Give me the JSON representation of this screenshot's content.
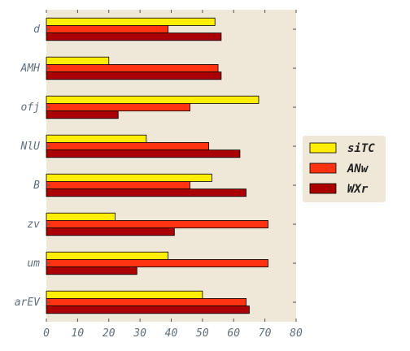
{
  "chart_data": {
    "type": "bar",
    "orientation": "horizontal",
    "categories": [
      "d",
      "AMH",
      "ofj",
      "NlU",
      "B",
      "zv",
      "um",
      "arEV"
    ],
    "series": [
      {
        "name": "siTC",
        "color": "#ffee00",
        "values": [
          54,
          20,
          68,
          32,
          53,
          22,
          39,
          50
        ]
      },
      {
        "name": "ANw",
        "color": "#ff3311",
        "values": [
          39,
          55,
          46,
          52,
          46,
          71,
          71,
          64
        ]
      },
      {
        "name": "WXr",
        "color": "#aa0000",
        "values": [
          56,
          56,
          23,
          62,
          64,
          41,
          29,
          65
        ]
      }
    ],
    "xlim": [
      0,
      80
    ],
    "xticks": [
      0,
      10,
      20,
      30,
      40,
      50,
      60,
      70,
      80
    ],
    "background": "#efe8d8",
    "grid": false,
    "legend_position": "right"
  }
}
